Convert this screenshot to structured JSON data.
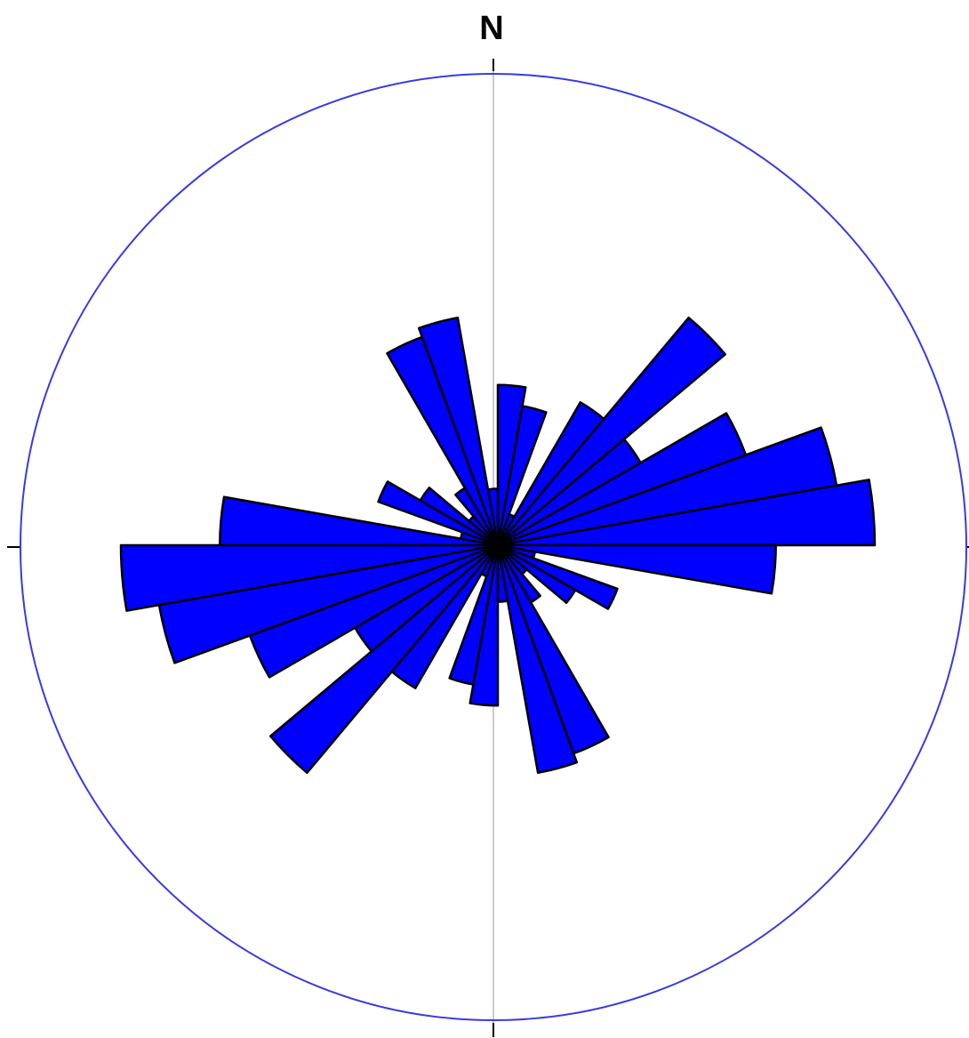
{
  "chart_data": {
    "type": "rose",
    "north_label": "N",
    "bin_width_deg": 10,
    "symmetric": true,
    "max_radius": 1.0,
    "colors": {
      "petal_fill": "#0000ff",
      "petal_stroke": "#000000",
      "outer_circle": "#3a3ae0",
      "axis_line": "#bbbbbb"
    },
    "bins": [
      {
        "start": 0,
        "end": 10,
        "value": 0.34
      },
      {
        "start": 10,
        "end": 20,
        "value": 0.3
      },
      {
        "start": 20,
        "end": 30,
        "value": 0.07
      },
      {
        "start": 30,
        "end": 40,
        "value": 0.35
      },
      {
        "start": 40,
        "end": 50,
        "value": 0.63
      },
      {
        "start": 50,
        "end": 60,
        "value": 0.35
      },
      {
        "start": 60,
        "end": 70,
        "value": 0.56
      },
      {
        "start": 70,
        "end": 80,
        "value": 0.73
      },
      {
        "start": 80,
        "end": 90,
        "value": 0.8
      },
      {
        "start": 90,
        "end": 100,
        "value": 0.59
      },
      {
        "start": 100,
        "end": 110,
        "value": 0.08
      },
      {
        "start": 110,
        "end": 120,
        "value": 0.27
      },
      {
        "start": 120,
        "end": 130,
        "value": 0.19
      },
      {
        "start": 130,
        "end": 140,
        "value": 0.08
      },
      {
        "start": 140,
        "end": 150,
        "value": 0.14
      },
      {
        "start": 150,
        "end": 160,
        "value": 0.47
      },
      {
        "start": 160,
        "end": 170,
        "value": 0.49
      },
      {
        "start": 170,
        "end": 180,
        "value": 0.12
      }
    ]
  }
}
